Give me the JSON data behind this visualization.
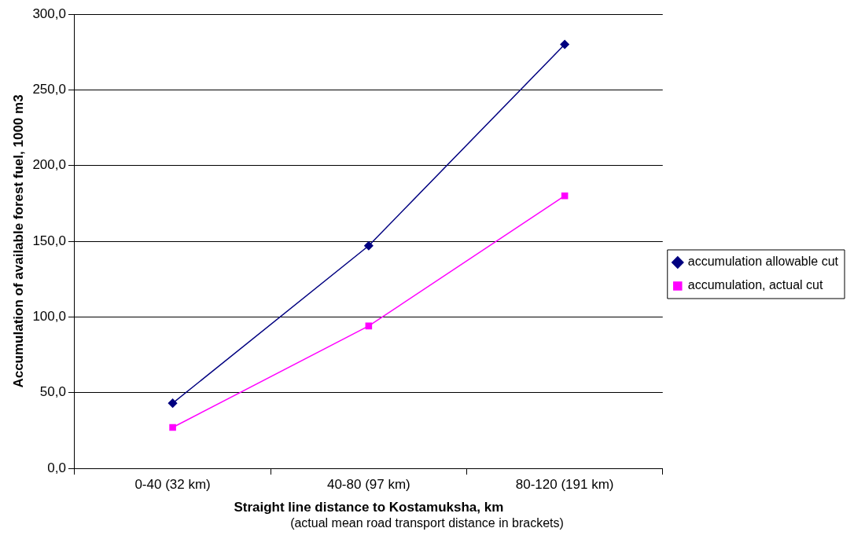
{
  "chart_data": {
    "type": "line",
    "xlabel": "Straight line distance to Kostamuksha, km",
    "ylabel": "Accumulation of available forest fuel, 1000 m3",
    "annotations": [
      "(actual mean road transport distance in brackets)"
    ],
    "categories": [
      "0-40 (32 km)",
      "40-80 (97 km)",
      "80-120 (191 km)"
    ],
    "series": [
      {
        "name": "accumulation allowable cut",
        "color": "#000080",
        "values": [
          43,
          147,
          280
        ],
        "marker": "diamond"
      },
      {
        "name": "accumulation, actual cut",
        "color": "#ff00ff",
        "values": [
          27,
          94,
          180
        ],
        "marker": "square"
      }
    ],
    "ylim": [
      0,
      300
    ],
    "yticks": [
      {
        "value": 0,
        "label": "0,0"
      },
      {
        "value": 50,
        "label": "50,0"
      },
      {
        "value": 100,
        "label": "100,0"
      },
      {
        "value": 150,
        "label": "150,0"
      },
      {
        "value": 200,
        "label": "200,0"
      },
      {
        "value": 250,
        "label": "250,0"
      },
      {
        "value": 300,
        "label": "300,0"
      }
    ],
    "grid": "y",
    "legend": "right"
  }
}
